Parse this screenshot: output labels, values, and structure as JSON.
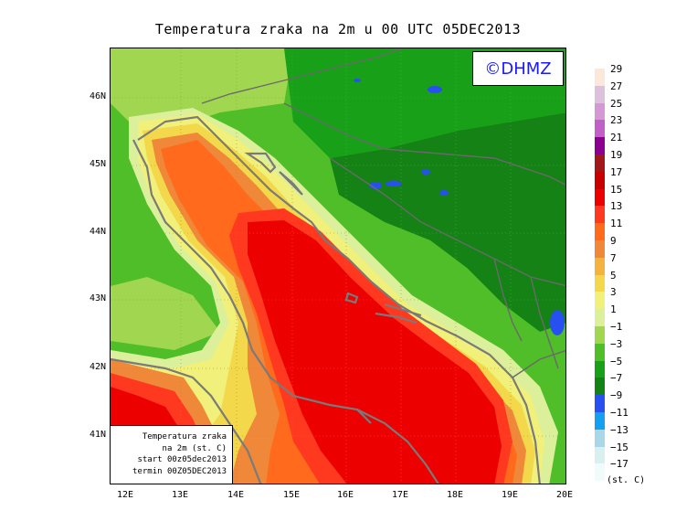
{
  "title": "Temperatura zraka na 2m u 00 UTC 05DEC2013",
  "logo": "©DHMZ",
  "info_box": {
    "lines": [
      "Temperatura zraka",
      "na 2m (st. C)",
      "start 00z05dec2013",
      "termin 00Z05DEC2013"
    ]
  },
  "lat_labels": [
    "46N",
    "45N",
    "44N",
    "43N",
    "42N",
    "41N"
  ],
  "lon_labels": [
    "12E",
    "13E",
    "14E",
    "15E",
    "16E",
    "17E",
    "18E",
    "19E",
    "20E"
  ],
  "legend": {
    "labels": [
      "29",
      "27",
      "25",
      "23",
      "21",
      "19",
      "17",
      "15",
      "13",
      "11",
      "9",
      "7",
      "5",
      "3",
      "1",
      "−1",
      "−3",
      "−5",
      "−7",
      "−9",
      "−11",
      "−13",
      "−15",
      "−17"
    ],
    "colors": [
      "#fce8d8",
      "#dcc0dc",
      "#d498d4",
      "#c060c8",
      "#8c0090",
      "#a01818",
      "#c80000",
      "#ec0000",
      "#ff3820",
      "#ff6a1c",
      "#f0883a",
      "#f4b23e",
      "#f2d84a",
      "#f0f07a",
      "#dcf09c",
      "#a0d650",
      "#50be28",
      "#18a018",
      "#148214",
      "#2850f0",
      "#14a0f0",
      "#a8d8e8",
      "#d8f0f0",
      "#f0fcfc"
    ],
    "unit": "(st. C)"
  }
}
